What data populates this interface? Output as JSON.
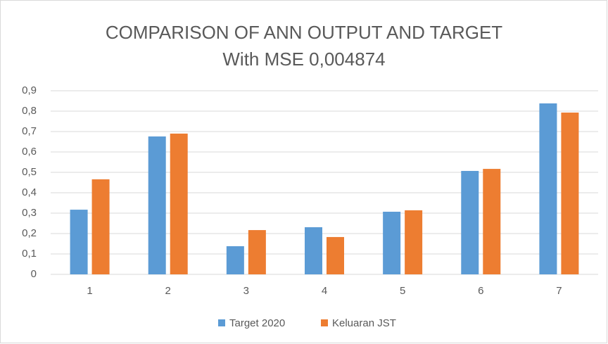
{
  "chart_data": {
    "type": "bar",
    "title": "COMPARISON OF ANN OUTPUT AND TARGET",
    "subtitle": "With MSE 0,004874",
    "categories": [
      "1",
      "2",
      "3",
      "4",
      "5",
      "6",
      "7"
    ],
    "series": [
      {
        "name": "Target 2020",
        "color": "#5b9bd5",
        "values": [
          0.317,
          0.676,
          0.138,
          0.231,
          0.307,
          0.507,
          0.838
        ]
      },
      {
        "name": "Keluaran JST",
        "color": "#ed7d31",
        "values": [
          0.466,
          0.69,
          0.217,
          0.183,
          0.314,
          0.517,
          0.793
        ]
      }
    ],
    "ylim": [
      0,
      0.9
    ],
    "yticks": [
      0,
      {
        "value": 0.1,
        "label": "0,1"
      },
      {
        "value": 0.2,
        "label": "0,2"
      },
      {
        "value": 0.3,
        "label": "0,3"
      },
      {
        "value": 0.4,
        "label": "0,4"
      },
      {
        "value": 0.5,
        "label": "0,5"
      },
      {
        "value": 0.6,
        "label": "0,6"
      },
      {
        "value": 0.7,
        "label": "0,7"
      },
      {
        "value": 0.8,
        "label": "0,8"
      },
      {
        "value": 0.9,
        "label": "0,9"
      }
    ],
    "grid": true,
    "legend": "bottom"
  }
}
